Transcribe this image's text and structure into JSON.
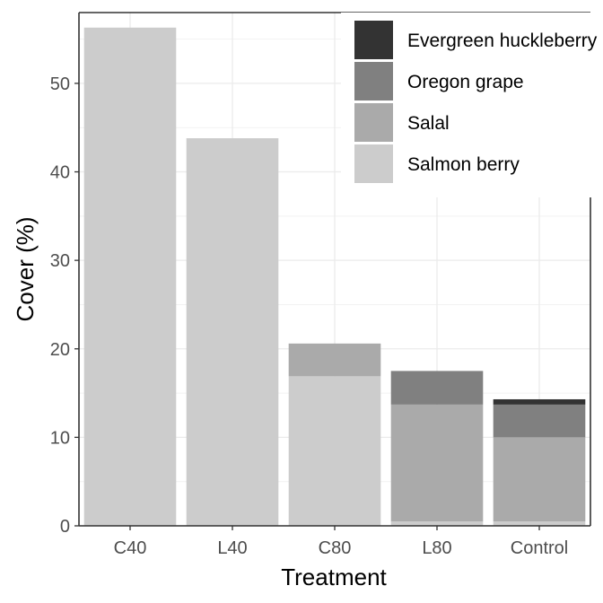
{
  "chart_data": {
    "type": "bar",
    "stacked": true,
    "xlabel": "Treatment",
    "ylabel": "Cover (%)",
    "categories": [
      "C40",
      "L40",
      "C80",
      "L80",
      "Control"
    ],
    "ylim": [
      0,
      58
    ],
    "yticks": [
      0,
      10,
      20,
      30,
      40,
      50
    ],
    "grid": true,
    "legend_position": "top-right",
    "series": [
      {
        "name": "Salmon berry",
        "color": "#cccccc",
        "values": [
          56.3,
          43.8,
          16.9,
          0.5,
          0.5
        ]
      },
      {
        "name": "Salal",
        "color": "#aaaaaa",
        "values": [
          0,
          0,
          3.7,
          13.2,
          9.5
        ]
      },
      {
        "name": "Oregon grape",
        "color": "#808080",
        "values": [
          0,
          0,
          0,
          3.8,
          3.7
        ]
      },
      {
        "name": "Evergreen huckleberry",
        "color": "#333333",
        "values": [
          0,
          0,
          0,
          0,
          0.6
        ]
      }
    ],
    "legend_order": [
      "Evergreen huckleberry",
      "Oregon grape",
      "Salal",
      "Salmon berry"
    ]
  }
}
